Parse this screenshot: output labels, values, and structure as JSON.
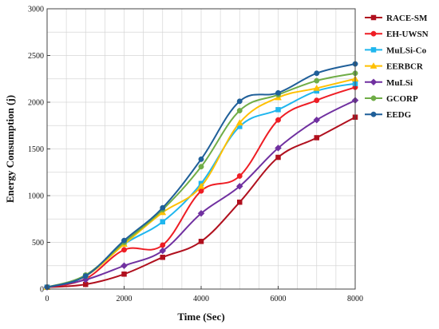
{
  "chart_data": {
    "type": "line",
    "title": "",
    "xlabel": "Time (Sec)",
    "ylabel": "Energy Consumption (j)",
    "xlim": [
      0,
      8000
    ],
    "ylim": [
      0,
      3000
    ],
    "x_ticks": [
      "0",
      "2000",
      "4000",
      "6000",
      "8000"
    ],
    "y_ticks": [
      "0",
      "500",
      "1000",
      "1500",
      "2000",
      "2500",
      "3000"
    ],
    "grid": true,
    "legend_position": "right",
    "x": [
      0,
      1000,
      2000,
      3000,
      4000,
      5000,
      6000,
      7000,
      8000
    ],
    "series": [
      {
        "name": "RACE-SM",
        "color": "#b0101e",
        "marker": "square",
        "values": [
          20,
          50,
          160,
          340,
          510,
          930,
          1410,
          1620,
          1840
        ]
      },
      {
        "name": "EH-UWSN",
        "color": "#ee1d24",
        "marker": "circle",
        "values": [
          20,
          110,
          420,
          470,
          1050,
          1210,
          1810,
          2020,
          2160
        ]
      },
      {
        "name": "MuLSi-Co",
        "color": "#1fb6ee",
        "marker": "square",
        "values": [
          20,
          140,
          480,
          720,
          1130,
          1740,
          1920,
          2120,
          2200
        ]
      },
      {
        "name": "EERBCR",
        "color": "#ffc000",
        "marker": "triangle",
        "values": [
          20,
          140,
          480,
          820,
          1100,
          1780,
          2050,
          2150,
          2250
        ]
      },
      {
        "name": "MuLSi",
        "color": "#7030a0",
        "marker": "diamond",
        "values": [
          20,
          100,
          250,
          410,
          810,
          1100,
          1510,
          1810,
          2020
        ]
      },
      {
        "name": "GCORP",
        "color": "#70ad47",
        "marker": "circle",
        "values": [
          20,
          150,
          500,
          850,
          1310,
          1910,
          2080,
          2230,
          2310
        ]
      },
      {
        "name": "EEDG",
        "color": "#1f5f99",
        "marker": "circle",
        "values": [
          20,
          140,
          520,
          870,
          1390,
          2010,
          2100,
          2310,
          2410
        ]
      }
    ]
  }
}
